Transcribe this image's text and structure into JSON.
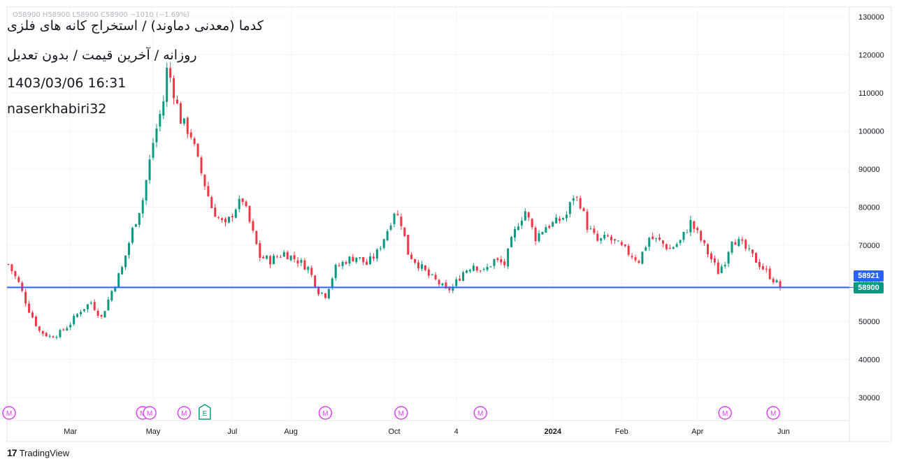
{
  "header": {
    "ohlc": "O58900  H58900  L58900  C58900  −1010 (−1.69%)",
    "title_line1": "کدما (معدنی دماوند) / استخراج کانه های فلزی",
    "title_line2": "روزانه / آخرین قیمت / بدون تعدیل",
    "title_line3": "1403/03/06 16:31",
    "title_line4": "naserkhabiri32"
  },
  "price_tags": {
    "blue": "58921",
    "green": "58900"
  },
  "brand": {
    "logo": "17",
    "name": "TradingView"
  },
  "colors": {
    "up": "#089981",
    "down": "#f23645",
    "line": "#2962ff",
    "marker": "#e040fb",
    "earnings": "#089981"
  },
  "chart_data": {
    "type": "candlestick",
    "y_axis": {
      "min": 25000,
      "max": 130000,
      "ticks": [
        30000,
        40000,
        50000,
        60000,
        70000,
        80000,
        90000,
        100000,
        110000,
        120000,
        130000
      ],
      "side": "right"
    },
    "x_axis": {
      "ticks": [
        "Mar",
        "May",
        "Jul",
        "Aug",
        "Oct",
        "4",
        "2024",
        "Feb",
        "Apr",
        "Jun"
      ],
      "tick_index": [
        18,
        42,
        65,
        82,
        112,
        130,
        158,
        178,
        200,
        225
      ]
    },
    "horizontal_line": 58921,
    "last_price": 58900,
    "grid": true,
    "markers": [
      {
        "label": "M",
        "index": 0
      },
      {
        "label": "M",
        "index": 39
      },
      {
        "label": "M",
        "index": 41
      },
      {
        "label": "M",
        "index": 51
      },
      {
        "label": "E",
        "index": 57
      },
      {
        "label": "M",
        "index": 92
      },
      {
        "label": "M",
        "index": 114
      },
      {
        "label": "M",
        "index": 137
      },
      {
        "label": "M",
        "index": 208
      },
      {
        "label": "M",
        "index": 222
      }
    ],
    "close_anchors": [
      [
        0,
        65000
      ],
      [
        3,
        60000
      ],
      [
        6,
        53000
      ],
      [
        9,
        47500
      ],
      [
        12,
        46000
      ],
      [
        15,
        47000
      ],
      [
        18,
        49500
      ],
      [
        21,
        53000
      ],
      [
        24,
        55000
      ],
      [
        27,
        51000
      ],
      [
        30,
        58000
      ],
      [
        33,
        64000
      ],
      [
        36,
        74000
      ],
      [
        39,
        82000
      ],
      [
        42,
        97000
      ],
      [
        45,
        108000
      ],
      [
        46,
        116000
      ],
      [
        47,
        114000
      ],
      [
        50,
        103000
      ],
      [
        53,
        99000
      ],
      [
        55,
        92000
      ],
      [
        57,
        86000
      ],
      [
        59,
        80000
      ],
      [
        61,
        77000
      ],
      [
        63,
        75000
      ],
      [
        66,
        80000
      ],
      [
        68,
        82000
      ],
      [
        70,
        76000
      ],
      [
        73,
        67000
      ],
      [
        76,
        66000
      ],
      [
        80,
        68000
      ],
      [
        84,
        66000
      ],
      [
        87,
        64000
      ],
      [
        90,
        58000
      ],
      [
        92,
        57000
      ],
      [
        95,
        64000
      ],
      [
        98,
        66000
      ],
      [
        101,
        67000
      ],
      [
        104,
        65000
      ],
      [
        107,
        68000
      ],
      [
        110,
        74000
      ],
      [
        112,
        79000
      ],
      [
        114,
        76000
      ],
      [
        116,
        68000
      ],
      [
        119,
        65000
      ],
      [
        122,
        62000
      ],
      [
        125,
        60000
      ],
      [
        127,
        58000
      ],
      [
        129,
        59000
      ],
      [
        132,
        63000
      ],
      [
        135,
        65000
      ],
      [
        138,
        63000
      ],
      [
        141,
        66000
      ],
      [
        144,
        65000
      ],
      [
        146,
        71000
      ],
      [
        148,
        76000
      ],
      [
        150,
        79000
      ],
      [
        153,
        72000
      ],
      [
        156,
        75000
      ],
      [
        159,
        76000
      ],
      [
        162,
        78000
      ],
      [
        164,
        83000
      ],
      [
        166,
        81000
      ],
      [
        168,
        75000
      ],
      [
        171,
        71000
      ],
      [
        174,
        72000
      ],
      [
        177,
        70000
      ],
      [
        180,
        68000
      ],
      [
        183,
        66000
      ],
      [
        186,
        72000
      ],
      [
        189,
        71000
      ],
      [
        192,
        69000
      ],
      [
        195,
        71000
      ],
      [
        198,
        76000
      ],
      [
        200,
        73000
      ],
      [
        203,
        68000
      ],
      [
        206,
        63000
      ],
      [
        208,
        66000
      ],
      [
        210,
        72000
      ],
      [
        213,
        70000
      ],
      [
        216,
        67000
      ],
      [
        219,
        64000
      ],
      [
        222,
        61000
      ],
      [
        224,
        59000
      ]
    ],
    "count": 225
  }
}
